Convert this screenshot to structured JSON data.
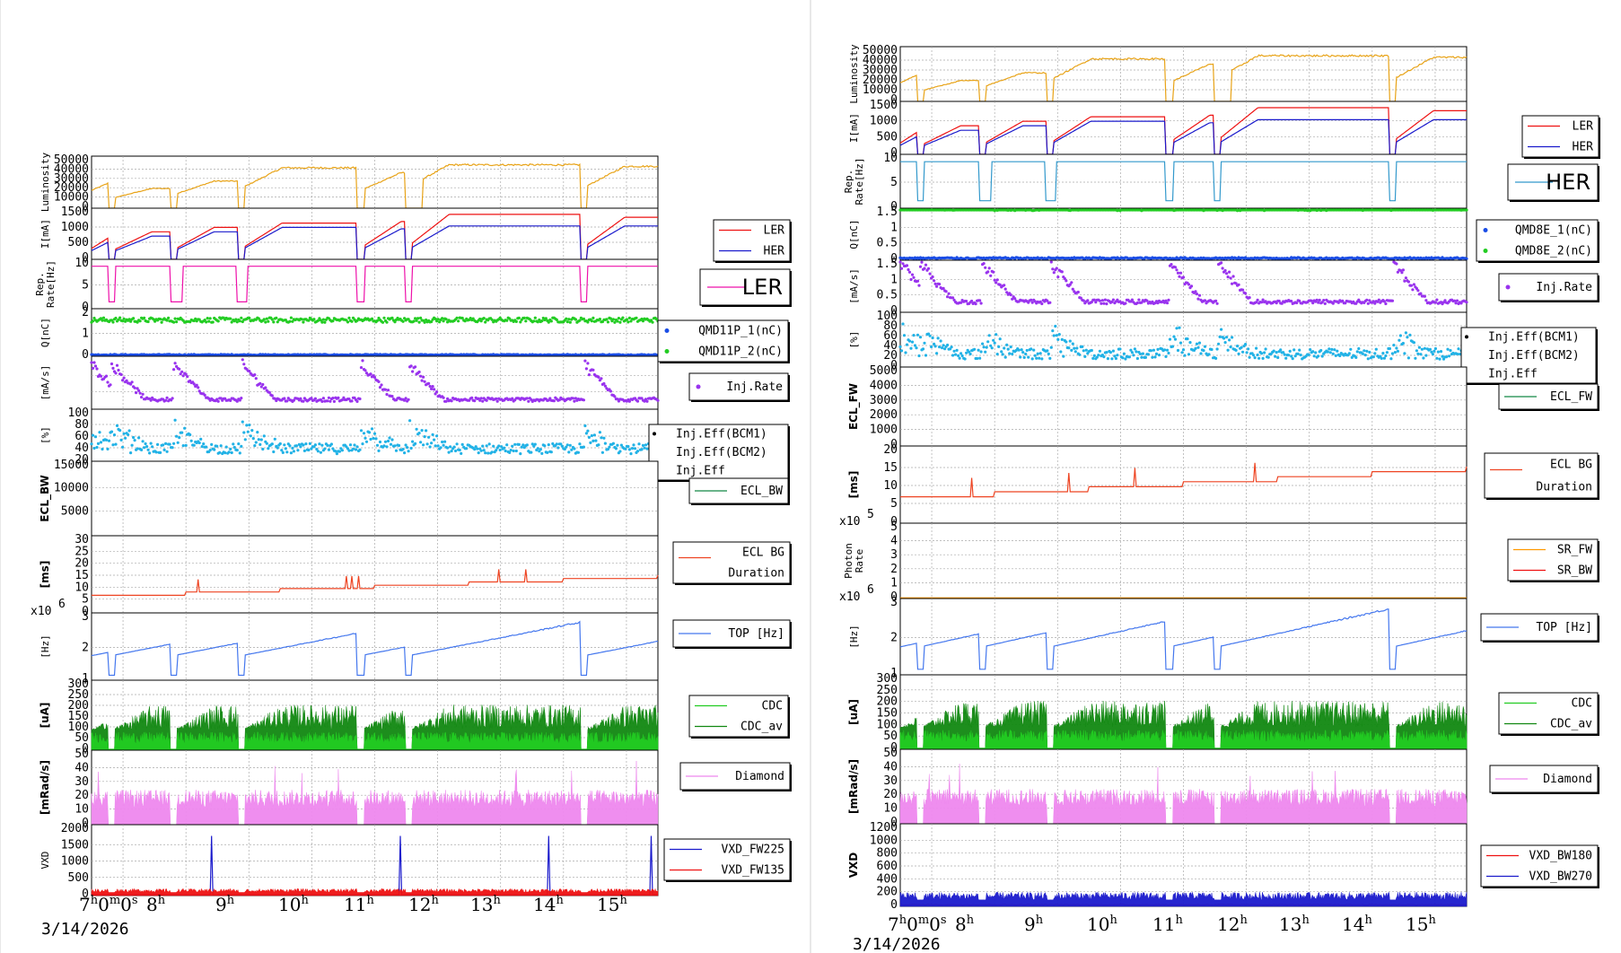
{
  "colors": {
    "lum": "#e8a317",
    "ler": "#ee1111",
    "her": "#1a1acc",
    "herRate": "#3399cc",
    "lerRate": "#ee11aa",
    "q1": "#1a4de6",
    "q2": "#22cc22",
    "inj": "#9933ee",
    "eff": "#22b2e6",
    "ecl": "#118844",
    "eclbg": "#ee4422",
    "sr1": "#ff9900",
    "sr2": "#ee1111",
    "top": "#4477ee",
    "cdc": "#22cc22",
    "cdcav": "#118811",
    "dia": "#ee88ee",
    "vxd1": "#1a1acc",
    "vxd2": "#ee1111"
  },
  "chart_data": [
    {
      "type": "line",
      "side": "left",
      "date": "3/14/2026",
      "x_ticks": [
        {
          "h": "7",
          "extra": "0m0s"
        },
        {
          "h": "8"
        },
        {
          "h": "9"
        },
        {
          "h": "10"
        },
        {
          "h": "11"
        },
        {
          "h": "12"
        },
        {
          "h": "13"
        },
        {
          "h": "14"
        },
        {
          "h": "15"
        }
      ],
      "panels": [
        {
          "id": "lum",
          "ylabel": [
            "Luminosity"
          ],
          "ylabel_bold": false,
          "yticks": [
            "50000",
            "40000",
            "30000",
            "20000",
            "10000",
            "0"
          ],
          "ymax": 50000,
          "legend": [],
          "legend_style": "none",
          "series": [
            {
              "name": "Luminosity",
              "color": "lum",
              "style": "line"
            }
          ]
        },
        {
          "id": "cur",
          "ylabel": [
            "I[mA]"
          ],
          "ylabel_bold": false,
          "yticks": [
            "1500",
            "1000",
            "500",
            "0"
          ],
          "ymax": 1700,
          "legend": [
            {
              "label": "LER",
              "color": "ler"
            },
            {
              "label": "HER",
              "color": "her"
            }
          ],
          "legend_style": "line",
          "series": [
            {
              "name": "LER",
              "color": "ler",
              "style": "line"
            },
            {
              "name": "HER",
              "color": "her",
              "style": "line"
            }
          ]
        },
        {
          "id": "rep",
          "ylabel": [
            "Rep.",
            "Rate[Hz]"
          ],
          "ylabel_bold": false,
          "yticks": [
            "10",
            "5",
            "0"
          ],
          "ymax": 14,
          "legend": [
            {
              "label": "LER",
              "color": "lerRate"
            }
          ],
          "legend_style": "big",
          "series": [
            {
              "name": "LER",
              "color": "lerRate",
              "style": "line"
            }
          ]
        },
        {
          "id": "q",
          "ylabel": [
            "Q[nC]"
          ],
          "ylabel_bold": false,
          "yticks": [
            "2",
            "1",
            "0"
          ],
          "ymax": 2.4,
          "legend": [
            {
              "label": "QMD11P_1(nC)",
              "color": "q1"
            },
            {
              "label": "QMD11P_2(nC)",
              "color": "q2"
            }
          ],
          "legend_style": "dot",
          "series": [
            {
              "name": "QMD11P_1(nC)",
              "color": "q1",
              "style": "scatter"
            },
            {
              "name": "QMD11P_2(nC)",
              "color": "q2",
              "style": "scatter"
            }
          ]
        },
        {
          "id": "inj",
          "ylabel": [
            "[mA/s]"
          ],
          "ylabel_bold": false,
          "yticks": [
            "",
            "",
            "",
            ""
          ],
          "ymax": 2,
          "legend": [
            {
              "label": "Inj.Rate",
              "color": "inj"
            }
          ],
          "legend_style": "dot",
          "series": [
            {
              "name": "Inj.Rate",
              "color": "inj",
              "style": "scatter"
            }
          ]
        },
        {
          "id": "eff",
          "ylabel": [
            "[%]"
          ],
          "ylabel_bold": false,
          "yticks": [
            "100",
            "80",
            "60",
            "40",
            "20"
          ],
          "ymax": 100,
          "legend": [
            {
              "label": "Inj.Eff(BCM1)",
              "color": "#000"
            },
            {
              "label": "Inj.Eff(BCM2)",
              "color": "#000"
            },
            {
              "label": "Inj.Eff",
              "color": "#000"
            }
          ],
          "legend_style": "plain",
          "series": [
            {
              "name": "Inj.Eff",
              "color": "eff",
              "style": "scatter"
            }
          ]
        },
        {
          "id": "ecl",
          "ylabel": [
            "ECL_BW"
          ],
          "ylabel_bold": true,
          "yticks": [
            "15000",
            "10000",
            "5000",
            ""
          ],
          "ymax": 15000,
          "legend": [
            {
              "label": "ECL_BW",
              "color": "ecl"
            }
          ],
          "legend_style": "line",
          "series": [
            {
              "name": "ECL_BW",
              "color": "ecl",
              "style": "fill"
            }
          ]
        },
        {
          "id": "eclbg",
          "ylabel": [
            "[ms]"
          ],
          "ylabel_bold": true,
          "yticks": [
            "30",
            "25",
            "20",
            "15",
            "10",
            "5",
            "0"
          ],
          "ymax": 30,
          "legend": [
            {
              "label": "ECL BG",
              "color": "eclbg"
            },
            {
              "label": "Duration",
              "color": ""
            }
          ],
          "legend_style": "line2",
          "series": [
            {
              "name": "ECL BG Duration",
              "color": "eclbg",
              "style": "line"
            }
          ]
        },
        {
          "id": "top",
          "ylabel": [
            "[Hz]"
          ],
          "ylabel_bold": false,
          "exponent": "x10",
          "exp_power": "6",
          "yticks": [
            "3",
            "2",
            "1"
          ],
          "ymax": 4,
          "legend": [
            {
              "label": "TOP [Hz]",
              "color": "top"
            }
          ],
          "legend_style": "line",
          "series": [
            {
              "name": "TOP [Hz]",
              "color": "top",
              "style": "line"
            }
          ]
        },
        {
          "id": "cdc",
          "ylabel": [
            "[uA]"
          ],
          "ylabel_bold": true,
          "yticks": [
            "300",
            "250",
            "200",
            "150",
            "100",
            "50",
            "0"
          ],
          "ymax": 300,
          "legend": [
            {
              "label": "CDC",
              "color": "cdc"
            },
            {
              "label": "CDC_av",
              "color": "cdcav"
            }
          ],
          "legend_style": "line",
          "series": [
            {
              "name": "CDC",
              "color": "cdcav",
              "style": "fill"
            },
            {
              "name": "CDC_av",
              "color": "cdc",
              "style": "fill"
            }
          ]
        },
        {
          "id": "dia",
          "ylabel": [
            "[mRad/s]"
          ],
          "ylabel_bold": true,
          "yticks": [
            "50",
            "40",
            "30",
            "20",
            "10",
            "0"
          ],
          "ymax": 50,
          "legend": [
            {
              "label": "Diamond",
              "color": "dia"
            }
          ],
          "legend_style": "line",
          "series": [
            {
              "name": "Diamond",
              "color": "dia",
              "style": "fill"
            }
          ]
        },
        {
          "id": "vxd",
          "ylabel": [
            "VXD"
          ],
          "ylabel_bold": false,
          "yticks": [
            "2000",
            "1500",
            "1000",
            "500",
            "0"
          ],
          "ymax": 2200,
          "legend": [
            {
              "label": "VXD_FW225",
              "color": "vxd1"
            },
            {
              "label": "VXD_FW135",
              "color": "vxd2"
            }
          ],
          "legend_style": "line",
          "series": [
            {
              "name": "VXD_FW225",
              "color": "vxd1",
              "style": "line"
            },
            {
              "name": "VXD_FW135",
              "color": "vxd2",
              "style": "fill"
            }
          ]
        }
      ]
    },
    {
      "type": "line",
      "side": "right",
      "date": "3/14/2026",
      "x_ticks": [
        {
          "h": "7",
          "extra": "0m0s"
        },
        {
          "h": "8"
        },
        {
          "h": "9"
        },
        {
          "h": "10"
        },
        {
          "h": "11"
        },
        {
          "h": "12"
        },
        {
          "h": "13"
        },
        {
          "h": "14"
        },
        {
          "h": "15"
        }
      ],
      "panels": [
        {
          "id": "lum",
          "ylabel": [
            "Luminosity"
          ],
          "ylabel_bold": false,
          "yticks": [
            "50000",
            "40000",
            "30000",
            "20000",
            "10000",
            "0"
          ],
          "ymax": 50000,
          "legend": [],
          "legend_style": "none",
          "series": [
            {
              "name": "Luminosity",
              "color": "lum",
              "style": "line"
            }
          ]
        },
        {
          "id": "cur",
          "ylabel": [
            "I[mA]"
          ],
          "ylabel_bold": false,
          "yticks": [
            "1500",
            "1000",
            "500",
            "0"
          ],
          "ymax": 1700,
          "legend": [
            {
              "label": "LER",
              "color": "ler"
            },
            {
              "label": "HER",
              "color": "her"
            }
          ],
          "legend_style": "line",
          "series": [
            {
              "name": "LER",
              "color": "ler",
              "style": "line"
            },
            {
              "name": "HER",
              "color": "her",
              "style": "line"
            }
          ]
        },
        {
          "id": "rep",
          "ylabel": [
            "Rep.",
            "Rate[Hz]"
          ],
          "ylabel_bold": false,
          "yticks": [
            "10",
            "5",
            "0"
          ],
          "ymax": 14,
          "legend": [
            {
              "label": "HER",
              "color": "herRate"
            }
          ],
          "legend_style": "big",
          "series": [
            {
              "name": "HER",
              "color": "herRate",
              "style": "line"
            }
          ]
        },
        {
          "id": "q",
          "ylabel": [
            "Q[nC]"
          ],
          "ylabel_bold": false,
          "yticks": [
            "1.5",
            "1",
            "0.5",
            "0"
          ],
          "ymax": 1.8,
          "legend": [
            {
              "label": "QMD8E_1(nC)",
              "color": "q1"
            },
            {
              "label": "QMD8E_2(nC)",
              "color": "q2"
            }
          ],
          "legend_style": "dot",
          "series": [
            {
              "name": "QMD8E_1(nC)",
              "color": "q1",
              "style": "scatter"
            },
            {
              "name": "QMD8E_2(nC)",
              "color": "q2",
              "style": "scatter"
            }
          ]
        },
        {
          "id": "inj",
          "ylabel": [
            "[mA/s]"
          ],
          "ylabel_bold": false,
          "yticks": [
            "1.5",
            "1",
            "0.5",
            "0"
          ],
          "ymax": 1.8,
          "legend": [
            {
              "label": "Inj.Rate",
              "color": "inj"
            }
          ],
          "legend_style": "dot",
          "series": [
            {
              "name": "Inj.Rate",
              "color": "inj",
              "style": "scatter"
            }
          ]
        },
        {
          "id": "eff",
          "ylabel": [
            "[%]"
          ],
          "ylabel_bold": false,
          "yticks": [
            "100",
            "80",
            "60",
            "40",
            "20",
            "0"
          ],
          "ymax": 100,
          "legend": [
            {
              "label": "Inj.Eff(BCM1)",
              "color": "#000"
            },
            {
              "label": "Inj.Eff(BCM2)",
              "color": "#000"
            },
            {
              "label": "Inj.Eff",
              "color": "#000"
            }
          ],
          "legend_style": "plain",
          "series": [
            {
              "name": "Inj.Eff",
              "color": "eff",
              "style": "scatter"
            }
          ]
        },
        {
          "id": "ecl",
          "ylabel": [
            "ECL_FW"
          ],
          "ylabel_bold": true,
          "yticks": [
            "5000",
            "4000",
            "3000",
            "2000",
            "1000",
            "0"
          ],
          "ymax": 5000,
          "legend": [
            {
              "label": "ECL_FW",
              "color": "ecl"
            }
          ],
          "legend_style": "line",
          "series": [
            {
              "name": "ECL_FW",
              "color": "ecl",
              "style": "fill"
            }
          ]
        },
        {
          "id": "eclbg",
          "ylabel": [
            "[ms]"
          ],
          "ylabel_bold": true,
          "yticks": [
            "20",
            "15",
            "10",
            "5",
            "0"
          ],
          "ymax": 20,
          "legend": [
            {
              "label": "ECL BG",
              "color": "eclbg"
            },
            {
              "label": "Duration",
              "color": ""
            }
          ],
          "legend_style": "line2",
          "series": [
            {
              "name": "ECL BG Duration",
              "color": "eclbg",
              "style": "line"
            }
          ]
        },
        {
          "id": "sr",
          "ylabel": [
            "Photon",
            "Rate"
          ],
          "ylabel_bold": false,
          "exponent": "x10",
          "exp_power": "5",
          "yticks": [
            "5",
            "4",
            "3",
            "2",
            "1",
            "0"
          ],
          "ymax": 5,
          "legend": [
            {
              "label": "SR_FW",
              "color": "sr1"
            },
            {
              "label": "SR_BW",
              "color": "sr2"
            }
          ],
          "legend_style": "line",
          "series": [
            {
              "name": "SR_FW",
              "color": "sr1",
              "style": "line"
            }
          ]
        },
        {
          "id": "top",
          "ylabel": [
            "[Hz]"
          ],
          "ylabel_bold": false,
          "exponent": "x10",
          "exp_power": "6",
          "yticks": [
            "3",
            "2",
            "1"
          ],
          "ymax": 4,
          "legend": [
            {
              "label": "TOP [Hz]",
              "color": "top"
            }
          ],
          "legend_style": "line",
          "series": [
            {
              "name": "TOP [Hz]",
              "color": "top",
              "style": "line"
            }
          ]
        },
        {
          "id": "cdc",
          "ylabel": [
            "[uA]"
          ],
          "ylabel_bold": true,
          "yticks": [
            "300",
            "250",
            "200",
            "150",
            "100",
            "50",
            "0"
          ],
          "ymax": 300,
          "legend": [
            {
              "label": "CDC",
              "color": "cdc"
            },
            {
              "label": "CDC_av",
              "color": "cdcav"
            }
          ],
          "legend_style": "line",
          "series": [
            {
              "name": "CDC",
              "color": "cdcav",
              "style": "fill"
            },
            {
              "name": "CDC_av",
              "color": "cdc",
              "style": "fill"
            }
          ]
        },
        {
          "id": "dia",
          "ylabel": [
            "[mRad/s]"
          ],
          "ylabel_bold": true,
          "yticks": [
            "50",
            "40",
            "30",
            "20",
            "10",
            "0"
          ],
          "ymax": 50,
          "legend": [
            {
              "label": "Diamond",
              "color": "dia"
            }
          ],
          "legend_style": "line",
          "series": [
            {
              "name": "Diamond",
              "color": "dia",
              "style": "fill"
            }
          ]
        },
        {
          "id": "vxd",
          "ylabel": [
            "VXD"
          ],
          "ylabel_bold": true,
          "yticks": [
            "1200",
            "1000",
            "800",
            "600",
            "400",
            "200",
            "0"
          ],
          "ymax": 1250,
          "legend": [
            {
              "label": "VXD_BW180",
              "color": "vxd2"
            },
            {
              "label": "VXD_BW270",
              "color": "vxd1"
            }
          ],
          "legend_style": "line",
          "series": [
            {
              "name": "VXD_BW180",
              "color": "vxd2",
              "style": "line"
            },
            {
              "name": "VXD_BW270",
              "color": "vxd1",
              "style": "fill"
            }
          ]
        }
      ]
    }
  ]
}
